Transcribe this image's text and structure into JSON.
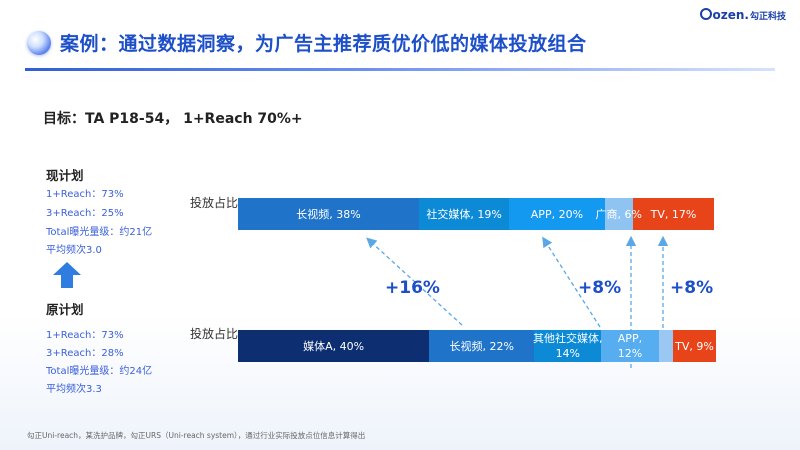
{
  "header": {
    "title": "案例：通过数据洞察，为广告主推荐质优价低的媒体投放组合",
    "logo_text": "ozen.",
    "logo_cn": "勾正科技"
  },
  "goal": "目标：TA P18-54，  1+Reach 70%+",
  "current_plan": {
    "title": "现计划",
    "stats": [
      "1+Reach：73%",
      "3+Reach：25%",
      "Total曝光量级：约21亿",
      "平均频次3.0"
    ],
    "bar_label": "投放占比",
    "segments": [
      {
        "label": "长视频, 38%",
        "value": 38,
        "color": "#1f74c9"
      },
      {
        "label": "社交媒体, 19%",
        "value": 19,
        "color": "#0c8ad6"
      },
      {
        "label": "APP, 20%",
        "value": 20,
        "color": "#1499f0"
      },
      {
        "label": "广商, 6%",
        "value": 6,
        "color": "#8ec3f2"
      },
      {
        "label": "TV, 17%",
        "value": 17,
        "color": "#e8441a"
      }
    ]
  },
  "original_plan": {
    "title": "原计划",
    "stats": [
      "1+Reach：73%",
      "3+Reach：28%",
      "Total曝光量级：约24亿",
      "平均频次3.3"
    ],
    "bar_label": "投放占比",
    "segments": [
      {
        "label": "媒体A, 40%",
        "value": 40,
        "color": "#0d2f72"
      },
      {
        "label": "长视频, 22%",
        "value": 22,
        "color": "#1f74c9"
      },
      {
        "label_line1": "其他社交媒体,",
        "label_line2": "14%",
        "value": 14,
        "color": "#0c8ad6"
      },
      {
        "label_line1": "APP,",
        "label_line2": "12%",
        "value": 12,
        "color": "#56adf0"
      },
      {
        "label": "",
        "value": 3,
        "color": "#9ac8f2"
      },
      {
        "label": "TV, 9%",
        "value": 9,
        "color": "#e8441a"
      }
    ]
  },
  "deltas": [
    "+16%",
    "+8%",
    "+8%"
  ],
  "footnote": "勾正Uni-reach，某洗护品牌，勾正URS（Uni-reach system），通过行业实际投放点位信息计算得出",
  "colors": {
    "accent": "#1d4fc9",
    "tv": "#e8441a",
    "dark_navy": "#0d2f72"
  },
  "icons": {
    "title": "blue-circle-icon",
    "up": "up-arrow-icon"
  }
}
